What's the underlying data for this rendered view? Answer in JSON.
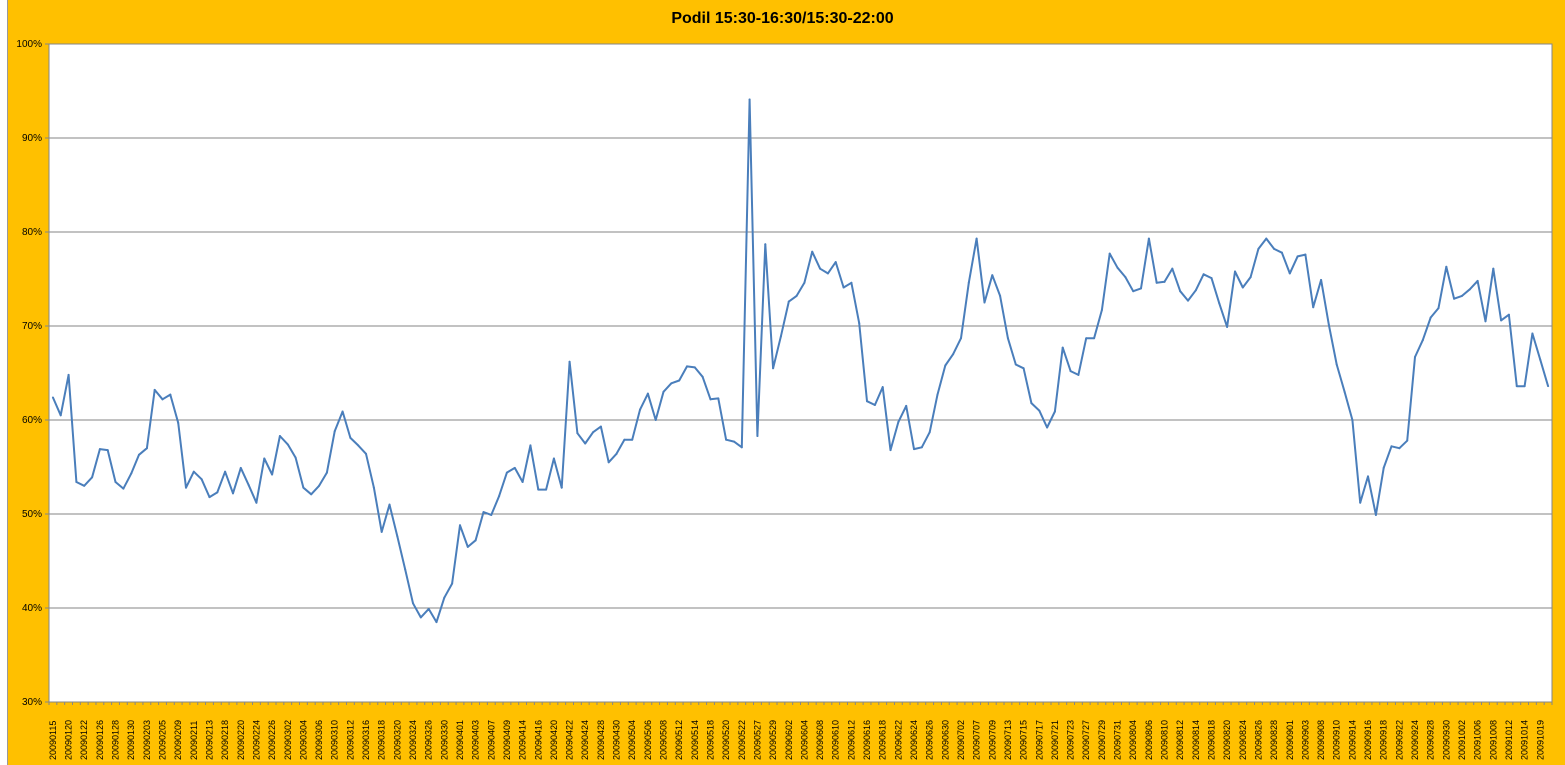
{
  "colors": {
    "background": "#FFC000",
    "plot_area": "#FFFFFF",
    "line": "#4A7EBB",
    "gridline": "#868686"
  },
  "chart_data": {
    "type": "line",
    "title": "Podil 15:30-16:30/15:30-22:00",
    "xlabel": "",
    "ylabel": "",
    "ylim": [
      30,
      100
    ],
    "y_ticks": [
      "30%",
      "40%",
      "50%",
      "60%",
      "70%",
      "80%",
      "90%",
      "100%"
    ],
    "y_tick_values": [
      30,
      40,
      50,
      60,
      70,
      80,
      90,
      100
    ],
    "grid": true,
    "legend": "none",
    "x_tick_labels": [
      "20090115",
      "20090120",
      "20090122",
      "20090126",
      "20090128",
      "20090130",
      "20090203",
      "20090205",
      "20090209",
      "20090211",
      "20090213",
      "20090218",
      "20090220",
      "20090224",
      "20090226",
      "20090302",
      "20090304",
      "20090306",
      "20090310",
      "20090312",
      "20090316",
      "20090318",
      "20090320",
      "20090324",
      "20090326",
      "20090330",
      "20090401",
      "20090403",
      "20090407",
      "20090409",
      "20090414",
      "20090416",
      "20090420",
      "20090422",
      "20090424",
      "20090428",
      "20090430",
      "20090504",
      "20090506",
      "20090508",
      "20090512",
      "20090514",
      "20090518",
      "20090520",
      "20090522",
      "20090527",
      "20090529",
      "20090602",
      "20090604",
      "20090608",
      "20090610",
      "20090612",
      "20090616",
      "20090618",
      "20090622",
      "20090624",
      "20090626",
      "20090630",
      "20090702",
      "20090707",
      "20090709",
      "20090713",
      "20090715",
      "20090717",
      "20090721",
      "20090723",
      "20090727",
      "20090729",
      "20090731",
      "20090804",
      "20090806",
      "20090810",
      "20090812",
      "20090814",
      "20090818",
      "20090820",
      "20090824",
      "20090826",
      "20090828",
      "20090901",
      "20090903",
      "20090908",
      "20090910",
      "20090914",
      "20090916",
      "20090918",
      "20090922",
      "20090924",
      "20090928",
      "20090930",
      "20091002",
      "20091006",
      "20091008",
      "20091012",
      "20091014",
      "20091019"
    ],
    "series": [
      {
        "values": [
          62.4,
          60.5,
          64.8,
          53.4,
          53.0,
          53.9,
          56.9,
          56.8,
          53.4,
          52.7,
          54.3,
          56.3,
          57.0,
          63.2,
          62.2,
          62.7,
          59.7,
          52.8,
          54.5,
          53.7,
          51.8,
          52.3,
          54.5,
          52.2,
          54.9,
          53.1,
          51.2,
          55.9,
          54.2,
          58.3,
          57.4,
          56.0,
          52.8,
          52.1,
          53.0,
          54.4,
          58.8,
          60.9,
          58.1,
          57.3,
          56.4,
          52.8,
          48.1,
          51.0,
          47.6,
          44.1,
          40.5,
          39.0,
          39.9,
          38.5,
          41.1,
          42.6,
          48.8,
          46.5,
          47.2,
          50.2,
          49.9,
          51.9,
          54.4,
          54.9,
          53.4,
          57.3,
          52.6,
          52.6,
          55.9,
          52.8,
          66.2,
          58.6,
          57.5,
          58.7,
          59.3,
          55.5,
          56.4,
          57.9,
          57.9,
          61.1,
          62.8,
          60.0,
          63.0,
          63.9,
          64.2,
          65.7,
          65.6,
          64.6,
          62.2,
          62.3,
          57.9,
          57.7,
          57.1,
          94.1,
          58.3,
          78.7,
          65.5,
          68.9,
          72.6,
          73.2,
          74.6,
          77.9,
          76.1,
          75.6,
          76.8,
          74.1,
          74.6,
          70.3,
          62.0,
          61.6,
          63.5,
          56.8,
          59.8,
          61.5,
          56.9,
          57.1,
          58.7,
          62.7,
          65.8,
          67.0,
          68.7,
          74.6,
          79.3,
          72.5,
          75.4,
          73.2,
          68.7,
          65.9,
          65.5,
          61.8,
          61.0,
          59.2,
          60.9,
          67.7,
          65.2,
          64.8,
          68.7,
          68.7,
          71.7,
          77.7,
          76.2,
          75.2,
          73.7,
          74.0,
          79.3,
          74.6,
          74.7,
          76.1,
          73.7,
          72.7,
          73.8,
          75.5,
          75.1,
          72.4,
          69.9,
          75.8,
          74.1,
          75.2,
          78.2,
          79.3,
          78.2,
          77.8,
          75.6,
          77.4,
          77.6,
          72.0,
          74.9,
          70.1,
          65.9,
          63.0,
          60.0,
          51.2,
          54.0,
          49.9,
          54.9,
          57.2,
          57.0,
          57.8,
          66.7,
          68.5,
          70.9,
          71.9,
          76.3,
          72.9,
          73.2,
          73.9,
          74.8,
          70.5,
          76.1,
          70.6,
          71.2,
          63.6,
          63.6,
          69.2,
          66.4,
          63.6
        ]
      }
    ]
  }
}
